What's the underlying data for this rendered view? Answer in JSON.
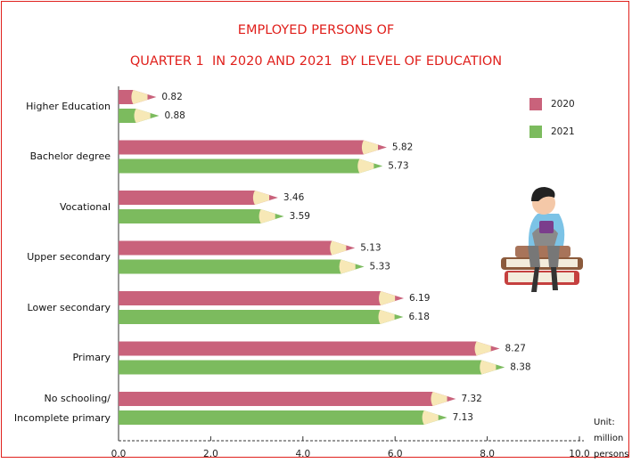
{
  "chart_data": {
    "type": "pencil-bar",
    "title": "EMPLOYED PERSONS OF",
    "subtitle": "QUARTER 1  IN 2020 AND 2021  BY LEVEL OF EDUCATION",
    "categories": [
      "Higher Education",
      "Bachelor degree",
      "Vocational",
      "Upper secondary",
      "Lower secondary",
      "Primary",
      "No schooling/\nIncomplete primary"
    ],
    "series": [
      {
        "name": "2020",
        "color": "#c9627b",
        "values": [
          0.82,
          5.82,
          3.46,
          5.13,
          6.19,
          8.27,
          7.32
        ]
      },
      {
        "name": "2021",
        "color": "#7cbb5e",
        "values": [
          0.88,
          5.73,
          3.59,
          5.33,
          6.18,
          8.38,
          7.13
        ]
      }
    ],
    "xlim": [
      0,
      10
    ],
    "xticks": [
      {
        "value": 0,
        "label": "0.0"
      },
      {
        "value": 2,
        "label": "2.0"
      },
      {
        "value": 4,
        "label": "4.0"
      },
      {
        "value": 6,
        "label": "6.0"
      },
      {
        "value": 8,
        "label": "8.0"
      },
      {
        "value": 10,
        "label": "10.0"
      }
    ],
    "unit": "Unit:\nmillion\npersons",
    "legend": "right"
  }
}
